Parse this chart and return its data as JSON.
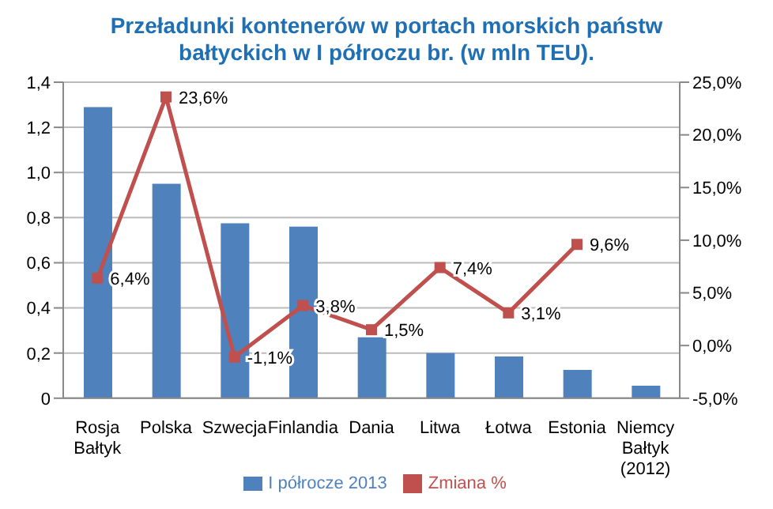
{
  "chart_data": {
    "type": "bar",
    "title": "Przeładunki kontenerów w portach morskich państw bałtyckich w I półroczu br. (w mln TEU).",
    "categories": [
      "Rosja Bałtyk",
      "Polska",
      "Szwecja",
      "Finlandia",
      "Dania",
      "Litwa",
      "Łotwa",
      "Estonia",
      "Niemcy Bałtyk (2012)"
    ],
    "series": [
      {
        "name": "I półrocze 2013",
        "color": "#4f81bd",
        "values": [
          1.29,
          0.95,
          0.775,
          0.76,
          0.27,
          0.2,
          0.185,
          0.125,
          0.055
        ]
      },
      {
        "name": "Zmiana %",
        "type": "line",
        "axis": "y2",
        "color": "#c0504d",
        "marker": "square",
        "values": [
          6.4,
          23.6,
          -1.1,
          3.8,
          1.5,
          7.4,
          3.1,
          9.6,
          null
        ],
        "value_labels": [
          "6,4%",
          "23,6%",
          "-1,1%",
          "3,8%",
          "1,5%",
          "7,4%",
          "3,1%",
          "9,6%",
          null
        ]
      }
    ],
    "ylim": [
      0,
      1.4
    ],
    "yticks": [
      0,
      {
        "value": 0.2,
        "label": "0,2"
      },
      {
        "value": 0.4,
        "label": "0,4"
      },
      {
        "value": 0.6,
        "label": "0,6"
      },
      {
        "value": 0.8,
        "label": "0,8"
      },
      {
        "value": 1.0,
        "label": "1,0"
      },
      {
        "value": 1.2,
        "label": "1,2"
      },
      {
        "value": 1.4,
        "label": "1,4"
      }
    ],
    "y2lim": [
      -5,
      25
    ],
    "y2ticks": [
      {
        "value": -5,
        "label": "-5,0%"
      },
      {
        "value": 0,
        "label": "0,0%"
      },
      {
        "value": 5,
        "label": "5,0%"
      },
      {
        "value": 10,
        "label": "10,0%"
      },
      {
        "value": 15,
        "label": "15,0%"
      },
      {
        "value": 20,
        "label": "20,0%"
      },
      {
        "value": 25,
        "label": "25,0%"
      }
    ],
    "grid": "y",
    "legend": "bottom"
  }
}
